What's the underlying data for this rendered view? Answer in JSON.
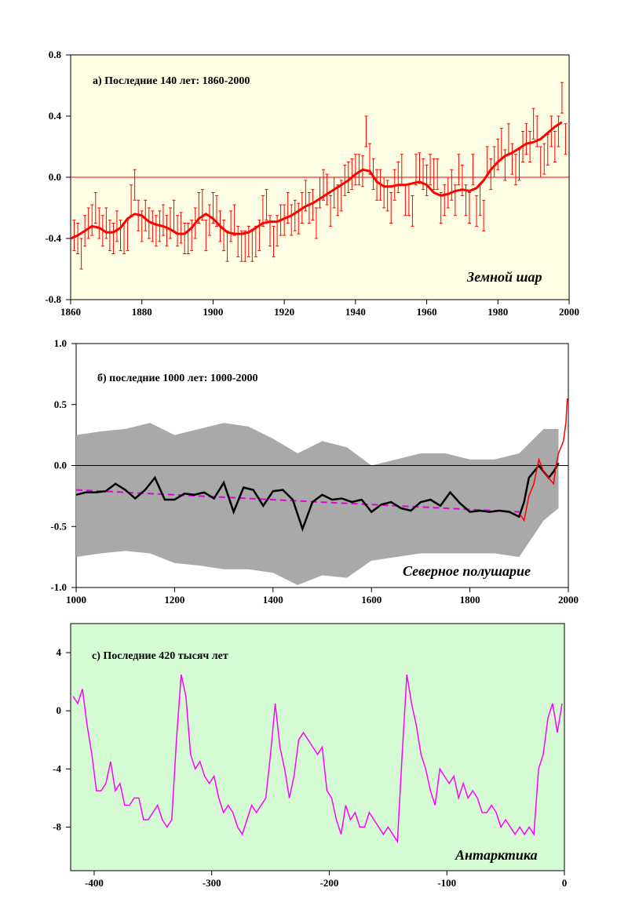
{
  "chart_data": [
    {
      "type": "line",
      "title": "а) Последние 140 лет: 1860-2000",
      "region_label": "Земной шар",
      "background": "#fefee4",
      "line_color": "#ff0000",
      "xlim": [
        1860,
        2000
      ],
      "ylim": [
        -0.8,
        0.8
      ],
      "x_ticks": [
        1860,
        1880,
        1900,
        1920,
        1940,
        1960,
        1980,
        2000
      ],
      "y_ticks": [
        -0.8,
        -0.4,
        0.0,
        0.4,
        0.8
      ],
      "y_tick_labels": [
        "-0.8",
        "-0.4",
        "0.0",
        "0.4",
        "0.8"
      ],
      "zero_line": true,
      "annual": {
        "x": [
          1861,
          1862,
          1863,
          1864,
          1865,
          1866,
          1867,
          1868,
          1869,
          1870,
          1871,
          1872,
          1873,
          1874,
          1875,
          1876,
          1877,
          1878,
          1879,
          1880,
          1881,
          1882,
          1883,
          1884,
          1885,
          1886,
          1887,
          1888,
          1889,
          1890,
          1891,
          1892,
          1893,
          1894,
          1895,
          1896,
          1897,
          1898,
          1899,
          1900,
          1901,
          1902,
          1903,
          1904,
          1905,
          1906,
          1907,
          1908,
          1909,
          1910,
          1911,
          1912,
          1913,
          1914,
          1915,
          1916,
          1917,
          1918,
          1919,
          1920,
          1921,
          1922,
          1923,
          1924,
          1925,
          1926,
          1927,
          1928,
          1929,
          1930,
          1931,
          1932,
          1933,
          1934,
          1935,
          1936,
          1937,
          1938,
          1939,
          1940,
          1941,
          1942,
          1943,
          1944,
          1945,
          1946,
          1947,
          1948,
          1949,
          1950,
          1951,
          1952,
          1953,
          1954,
          1955,
          1956,
          1957,
          1958,
          1959,
          1960,
          1961,
          1962,
          1963,
          1964,
          1965,
          1966,
          1967,
          1968,
          1969,
          1970,
          1971,
          1972,
          1973,
          1974,
          1975,
          1976,
          1977,
          1978,
          1979,
          1980,
          1981,
          1982,
          1983,
          1984,
          1985,
          1986,
          1987,
          1988,
          1989,
          1990,
          1991,
          1992,
          1993,
          1994,
          1995,
          1996,
          1997,
          1998,
          1999
        ],
        "y": [
          -0.38,
          -0.4,
          -0.5,
          -0.35,
          -0.3,
          -0.28,
          -0.2,
          -0.3,
          -0.35,
          -0.3,
          -0.38,
          -0.4,
          -0.32,
          -0.38,
          -0.4,
          -0.38,
          -0.15,
          -0.05,
          -0.25,
          -0.32,
          -0.25,
          -0.3,
          -0.32,
          -0.35,
          -0.32,
          -0.28,
          -0.35,
          -0.3,
          -0.25,
          -0.35,
          -0.33,
          -0.4,
          -0.4,
          -0.38,
          -0.3,
          -0.2,
          -0.18,
          -0.38,
          -0.28,
          -0.2,
          -0.22,
          -0.32,
          -0.38,
          -0.45,
          -0.32,
          -0.28,
          -0.42,
          -0.45,
          -0.45,
          -0.42,
          -0.45,
          -0.42,
          -0.38,
          -0.22,
          -0.18,
          -0.35,
          -0.42,
          -0.35,
          -0.28,
          -0.28,
          -0.2,
          -0.28,
          -0.25,
          -0.27,
          -0.2,
          -0.12,
          -0.2,
          -0.18,
          -0.3,
          -0.1,
          -0.05,
          -0.08,
          -0.22,
          -0.1,
          -0.15,
          -0.12,
          -0.02,
          0.0,
          0.02,
          0.05,
          0.05,
          0.04,
          0.3,
          0.12,
          0.02,
          -0.05,
          -0.05,
          -0.1,
          -0.12,
          -0.2,
          -0.05,
          0.0,
          0.05,
          -0.15,
          -0.15,
          -0.22,
          0.05,
          0.06,
          0.02,
          -0.02,
          0.05,
          0.02,
          0.02,
          -0.2,
          -0.15,
          -0.1,
          -0.05,
          -0.15,
          0.05,
          -0.02,
          -0.15,
          -0.2,
          0.05,
          -0.22,
          -0.15,
          -0.25,
          0.1,
          0.02,
          0.1,
          0.15,
          0.22,
          0.08,
          0.25,
          0.12,
          0.05,
          0.08,
          0.2,
          0.25,
          0.2,
          0.35,
          0.3,
          0.1,
          0.12,
          0.18,
          0.3,
          0.2,
          0.3,
          0.52,
          0.25
        ],
        "error": 0.1
      },
      "smoothed": {
        "x": [
          1860,
          1862,
          1864,
          1866,
          1868,
          1870,
          1872,
          1874,
          1876,
          1878,
          1880,
          1882,
          1884,
          1886,
          1888,
          1890,
          1892,
          1894,
          1896,
          1898,
          1900,
          1902,
          1904,
          1906,
          1908,
          1910,
          1912,
          1914,
          1916,
          1918,
          1920,
          1922,
          1924,
          1926,
          1928,
          1930,
          1932,
          1934,
          1936,
          1938,
          1940,
          1942,
          1944,
          1946,
          1948,
          1950,
          1952,
          1954,
          1956,
          1958,
          1960,
          1962,
          1964,
          1966,
          1968,
          1970,
          1972,
          1974,
          1976,
          1978,
          1980,
          1982,
          1984,
          1986,
          1988,
          1990,
          1992,
          1994,
          1996,
          1998
        ],
        "y": [
          -0.4,
          -0.38,
          -0.35,
          -0.32,
          -0.33,
          -0.36,
          -0.36,
          -0.33,
          -0.27,
          -0.24,
          -0.25,
          -0.29,
          -0.31,
          -0.32,
          -0.34,
          -0.37,
          -0.37,
          -0.33,
          -0.27,
          -0.24,
          -0.27,
          -0.32,
          -0.36,
          -0.37,
          -0.37,
          -0.36,
          -0.33,
          -0.3,
          -0.29,
          -0.29,
          -0.27,
          -0.25,
          -0.22,
          -0.19,
          -0.17,
          -0.14,
          -0.11,
          -0.08,
          -0.05,
          -0.02,
          0.02,
          0.05,
          0.04,
          -0.03,
          -0.06,
          -0.06,
          -0.05,
          -0.05,
          -0.04,
          -0.03,
          -0.05,
          -0.1,
          -0.12,
          -0.11,
          -0.09,
          -0.08,
          -0.09,
          -0.07,
          -0.02,
          0.05,
          0.1,
          0.14,
          0.16,
          0.19,
          0.22,
          0.23,
          0.25,
          0.29,
          0.33,
          0.36
        ]
      }
    },
    {
      "type": "line",
      "title": "б) последние 1000 лет: 1000-2000",
      "region_label": "Северное полушарие",
      "background": "#ffffff",
      "xlim": [
        1000,
        2000
      ],
      "ylim": [
        -1.0,
        1.0
      ],
      "x_ticks": [
        1000,
        1200,
        1400,
        1600,
        1800,
        2000
      ],
      "y_ticks": [
        -1.0,
        -0.5,
        0.0,
        0.5,
        1.0
      ],
      "y_tick_labels": [
        "-1.0",
        "-0.5",
        "0.0",
        "0.5",
        "1.0"
      ],
      "zero_line": true,
      "series": [
        {
          "role": "uncertainty band",
          "color": "#a9a9a9",
          "x": [
            1000,
            1050,
            1100,
            1150,
            1200,
            1250,
            1300,
            1350,
            1400,
            1450,
            1500,
            1550,
            1600,
            1650,
            1700,
            1750,
            1800,
            1850,
            1900,
            1950,
            1980
          ],
          "upper": [
            0.25,
            0.28,
            0.3,
            0.35,
            0.25,
            0.3,
            0.35,
            0.32,
            0.22,
            0.1,
            0.2,
            0.15,
            0.0,
            0.05,
            0.1,
            0.1,
            0.05,
            0.05,
            0.1,
            0.3,
            0.3
          ],
          "lower": [
            -0.75,
            -0.72,
            -0.7,
            -0.72,
            -0.8,
            -0.82,
            -0.85,
            -0.85,
            -0.88,
            -0.98,
            -0.9,
            -0.92,
            -0.78,
            -0.75,
            -0.72,
            -0.72,
            -0.72,
            -0.72,
            -0.75,
            -0.45,
            -0.35
          ]
        },
        {
          "role": "smoothed reconstruction",
          "color": "#000000",
          "x": [
            1000,
            1020,
            1040,
            1060,
            1080,
            1100,
            1120,
            1140,
            1160,
            1180,
            1200,
            1220,
            1240,
            1260,
            1280,
            1300,
            1320,
            1340,
            1360,
            1380,
            1400,
            1420,
            1440,
            1460,
            1480,
            1500,
            1520,
            1540,
            1560,
            1580,
            1600,
            1620,
            1640,
            1660,
            1680,
            1700,
            1720,
            1740,
            1760,
            1780,
            1800,
            1820,
            1840,
            1860,
            1880,
            1900,
            1910,
            1920,
            1930,
            1940,
            1950,
            1960,
            1970,
            1980
          ],
          "y": [
            -0.24,
            -0.22,
            -0.22,
            -0.21,
            -0.15,
            -0.2,
            -0.27,
            -0.2,
            -0.1,
            -0.28,
            -0.28,
            -0.23,
            -0.24,
            -0.22,
            -0.27,
            -0.14,
            -0.38,
            -0.18,
            -0.2,
            -0.33,
            -0.21,
            -0.2,
            -0.28,
            -0.52,
            -0.3,
            -0.24,
            -0.28,
            -0.27,
            -0.3,
            -0.28,
            -0.38,
            -0.32,
            -0.3,
            -0.35,
            -0.37,
            -0.3,
            -0.28,
            -0.33,
            -0.22,
            -0.31,
            -0.38,
            -0.37,
            -0.38,
            -0.37,
            -0.38,
            -0.42,
            -0.3,
            -0.1,
            -0.05,
            0.0,
            -0.05,
            -0.1,
            -0.05,
            0.02
          ]
        },
        {
          "role": "linear trend",
          "color": "#e000e0",
          "dashed": true,
          "x": [
            1000,
            1900
          ],
          "y": [
            -0.2,
            -0.38
          ]
        },
        {
          "role": "instrumental record",
          "color": "#ff0000",
          "x": [
            1902,
            1910,
            1920,
            1930,
            1940,
            1950,
            1960,
            1970,
            1975,
            1980,
            1985,
            1990,
            1995,
            1998
          ],
          "y": [
            -0.4,
            -0.45,
            -0.25,
            -0.15,
            0.05,
            -0.05,
            -0.1,
            -0.15,
            0.0,
            0.1,
            0.15,
            0.2,
            0.35,
            0.55
          ]
        }
      ]
    },
    {
      "type": "line",
      "title": "с) Последние 420 тысяч лет",
      "region_label": "Антарктика",
      "background": "#d5fbd5",
      "line_color": "#ff00ff",
      "xlim": [
        -420,
        0
      ],
      "ylim": [
        -11,
        6
      ],
      "x_ticks": [
        -400,
        -300,
        -200,
        -100,
        0
      ],
      "y_ticks": [
        -8,
        -4,
        0,
        4
      ],
      "y_tick_labels": [
        "-8",
        "-4",
        "0",
        "4"
      ],
      "zero_line": false,
      "x": [
        -418,
        -414,
        -410,
        -406,
        -402,
        -398,
        -394,
        -390,
        -386,
        -382,
        -378,
        -374,
        -370,
        -366,
        -362,
        -358,
        -354,
        -350,
        -346,
        -342,
        -338,
        -334,
        -330,
        -326,
        -322,
        -318,
        -314,
        -310,
        -306,
        -302,
        -298,
        -294,
        -290,
        -286,
        -282,
        -278,
        -274,
        -270,
        -266,
        -262,
        -258,
        -254,
        -250,
        -246,
        -242,
        -238,
        -234,
        -230,
        -226,
        -222,
        -218,
        -214,
        -210,
        -206,
        -202,
        -198,
        -194,
        -190,
        -186,
        -182,
        -178,
        -174,
        -170,
        -166,
        -162,
        -158,
        -154,
        -150,
        -146,
        -142,
        -138,
        -134,
        -130,
        -126,
        -122,
        -118,
        -114,
        -110,
        -106,
        -102,
        -98,
        -94,
        -90,
        -86,
        -82,
        -78,
        -74,
        -70,
        -66,
        -62,
        -58,
        -54,
        -50,
        -46,
        -42,
        -38,
        -34,
        -30,
        -26,
        -22,
        -18,
        -14,
        -10,
        -6,
        -2
      ],
      "y": [
        1.0,
        0.5,
        1.5,
        -1.0,
        -3.0,
        -5.5,
        -5.5,
        -5.0,
        -3.5,
        -5.5,
        -5.0,
        -6.5,
        -6.5,
        -6.0,
        -6.0,
        -7.5,
        -7.5,
        -7.0,
        -6.5,
        -7.5,
        -8.0,
        -7.5,
        -2.0,
        2.5,
        1.0,
        -3.0,
        -4.0,
        -3.5,
        -4.5,
        -5.0,
        -4.5,
        -6.0,
        -7.0,
        -6.5,
        -7.0,
        -8.0,
        -8.5,
        -7.5,
        -6.5,
        -7.0,
        -6.5,
        -6.0,
        -3.0,
        0.5,
        -2.5,
        -4.0,
        -6.0,
        -4.5,
        -2.0,
        -1.5,
        -2.0,
        -2.5,
        -3.0,
        -2.5,
        -5.5,
        -6.0,
        -7.5,
        -8.5,
        -6.5,
        -7.5,
        -7.0,
        -8.0,
        -8.0,
        -7.0,
        -7.5,
        -8.0,
        -8.5,
        -8.0,
        -8.5,
        -9.0,
        -3.0,
        2.5,
        0.5,
        -1.0,
        -3.0,
        -4.0,
        -5.5,
        -6.5,
        -4.0,
        -4.5,
        -5.0,
        -4.5,
        -6.0,
        -5.0,
        -6.0,
        -5.5,
        -6.0,
        -7.0,
        -7.0,
        -6.5,
        -7.0,
        -8.0,
        -7.5,
        -8.0,
        -8.5,
        -8.0,
        -8.5,
        -8.0,
        -8.5,
        -4.0,
        -3.0,
        -0.5,
        0.5,
        -1.5,
        0.5
      ]
    }
  ]
}
